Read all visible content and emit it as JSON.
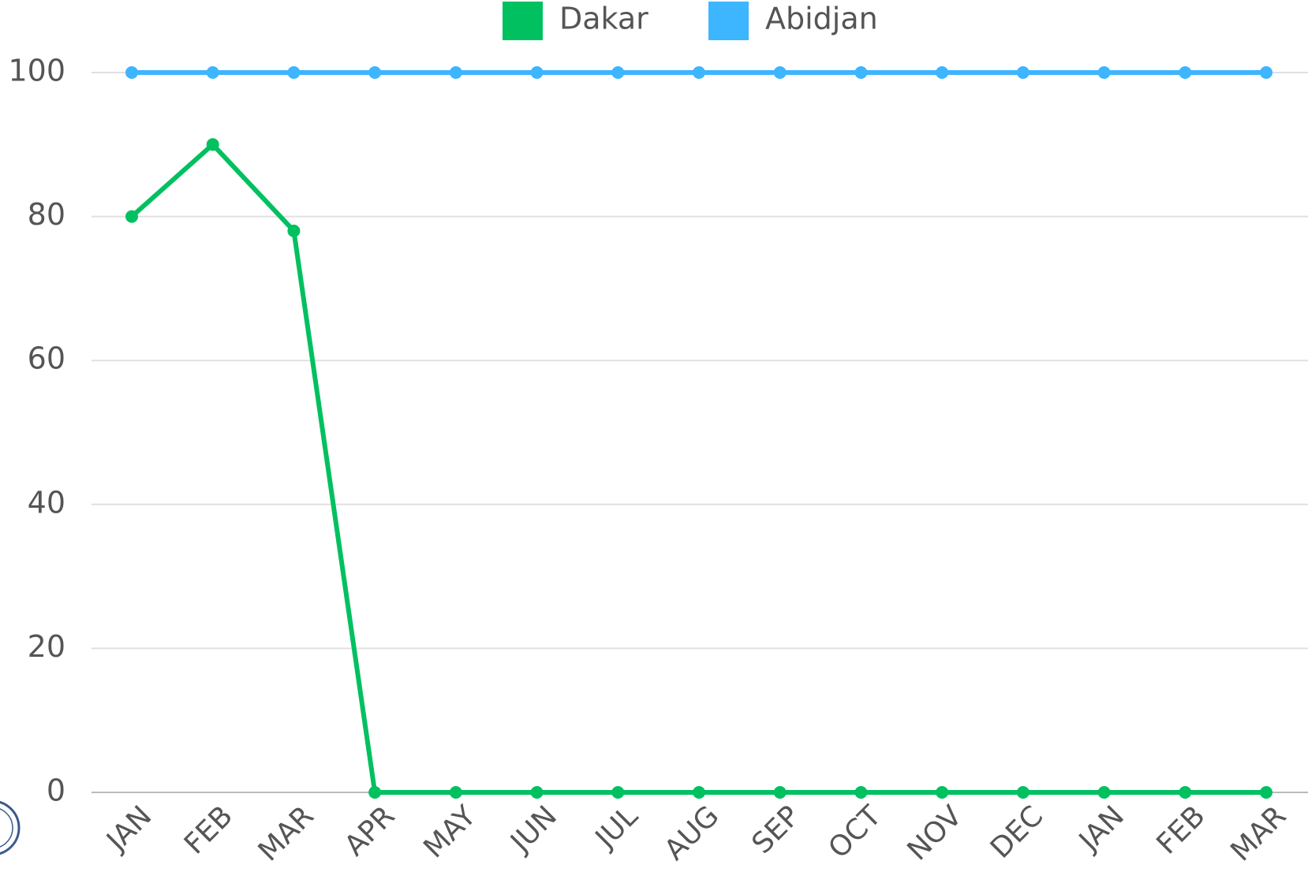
{
  "chart_data": {
    "type": "line",
    "categories": [
      "JAN",
      "FEB",
      "MAR",
      "APR",
      "MAY",
      "JUN",
      "JUL",
      "AUG",
      "SEP",
      "OCT",
      "NOV",
      "DEC",
      "JAN",
      "FEB",
      "MAR"
    ],
    "series": [
      {
        "name": "Dakar",
        "color": "#00c060",
        "values": [
          80,
          90,
          78,
          0,
          0,
          0,
          0,
          0,
          0,
          0,
          0,
          0,
          0,
          0,
          0
        ]
      },
      {
        "name": "Abidjan",
        "color": "#3db5ff",
        "values": [
          100,
          100,
          100,
          100,
          100,
          100,
          100,
          100,
          100,
          100,
          100,
          100,
          100,
          100,
          100
        ]
      }
    ],
    "ylim": [
      0,
      100
    ],
    "yticks": [
      0,
      20,
      40,
      60,
      80,
      100
    ],
    "grid": true,
    "legend": "top"
  }
}
